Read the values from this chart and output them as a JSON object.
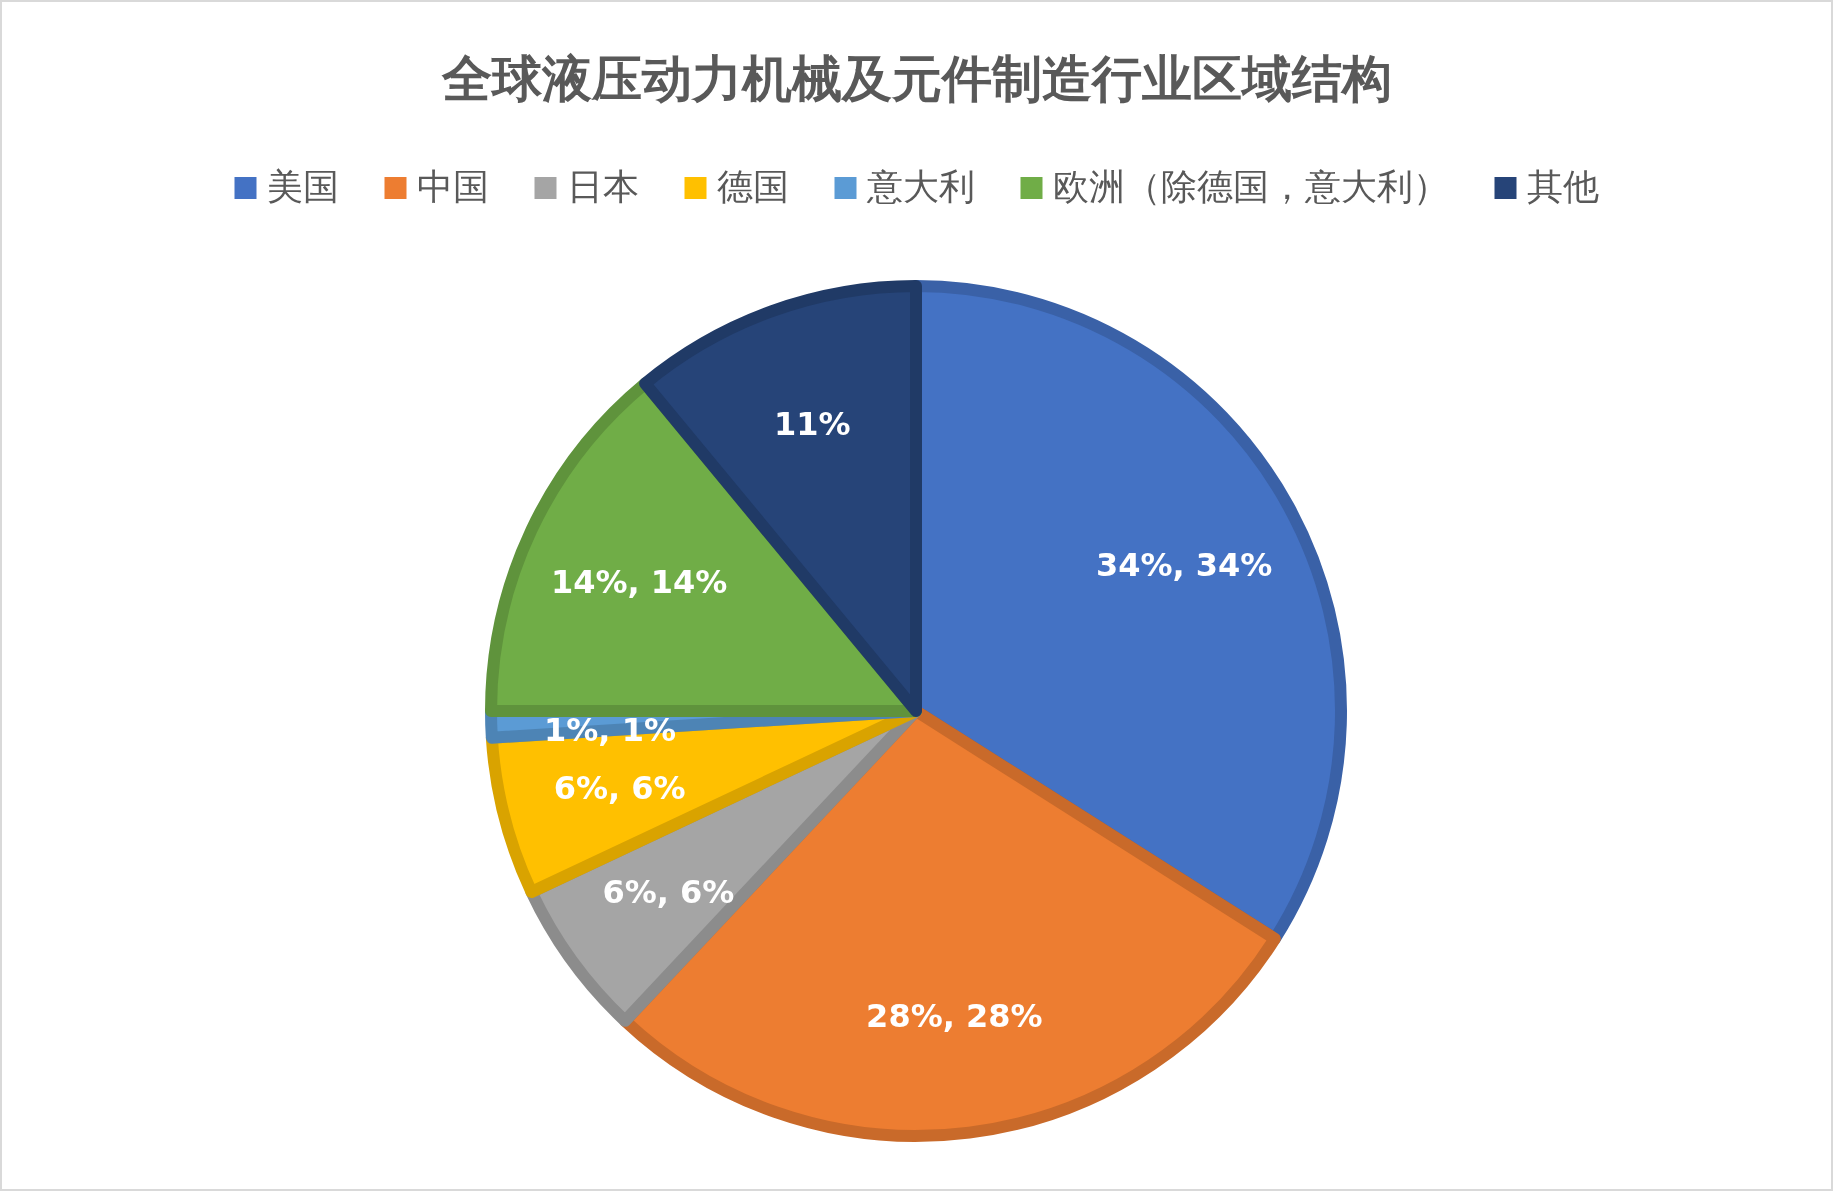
{
  "chart_data": {
    "type": "pie",
    "title": "全球液压动力机械及元件制造行业区域结构",
    "categories": [
      "美国",
      "中国",
      "日本",
      "德国",
      "意大利",
      "欧洲（除德国，意大利）",
      "其他"
    ],
    "values": [
      34,
      28,
      6,
      6,
      1,
      14,
      11
    ],
    "value_labels": [
      "34%, 34%",
      "28%, 28%",
      "6%, 6%",
      "6%, 6%",
      "1%, 1%",
      "14%, 14%",
      "11%"
    ],
    "colors": [
      "#4472c4",
      "#ed7d31",
      "#a5a5a5",
      "#ffc000",
      "#5b9bd5",
      "#70ad47",
      "#264478"
    ],
    "legend": "top"
  }
}
